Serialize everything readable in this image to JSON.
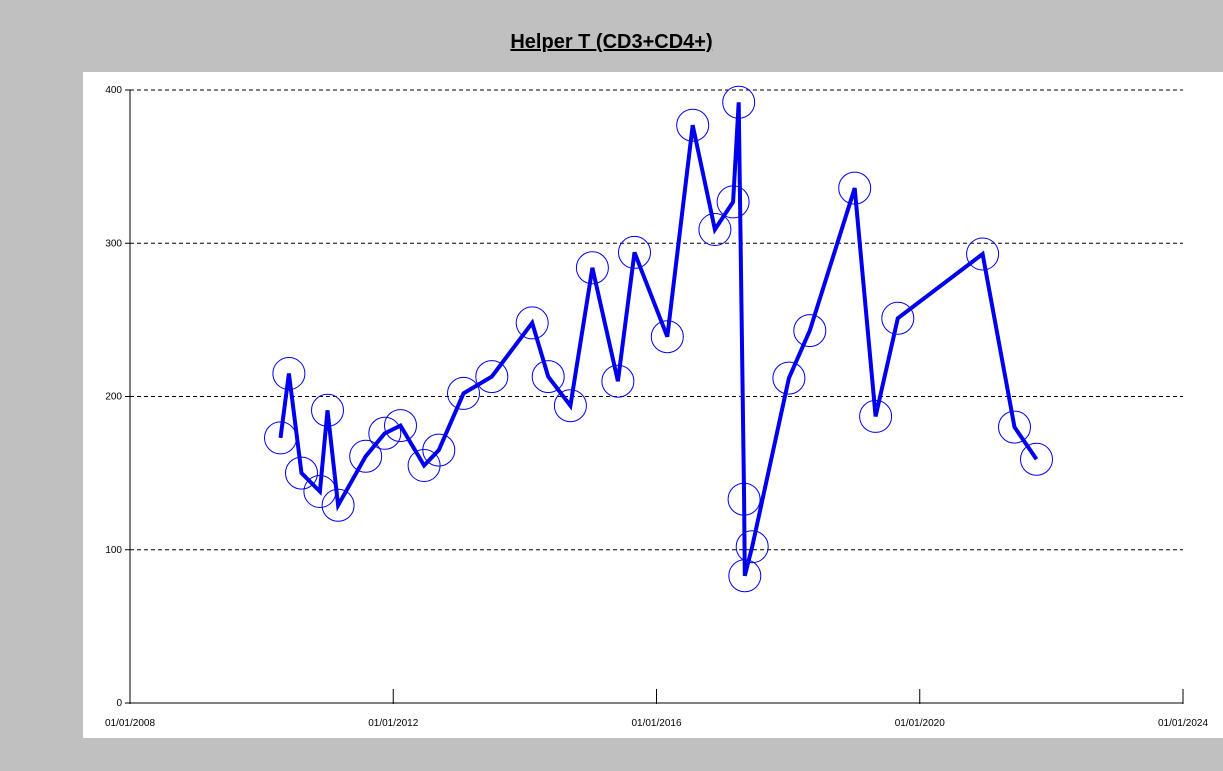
{
  "chart_data": {
    "type": "line",
    "title": "Helper T (CD3+CD4+)",
    "xlabel": "",
    "ylabel": "",
    "x_axis": {
      "type": "date",
      "min": "2008-01-01",
      "max": "2024-01-01",
      "ticks": [
        "2008-01-01",
        "2012-01-01",
        "2016-01-01",
        "2020-01-01",
        "2024-01-01"
      ],
      "tick_labels": [
        "01/01/2008",
        "01/01/2012",
        "01/01/2016",
        "01/01/2020",
        "01/01/2024"
      ]
    },
    "y_axis": {
      "min": 0,
      "max": 400,
      "ticks": [
        0,
        100,
        200,
        300,
        400
      ],
      "tick_labels": [
        "0",
        "100",
        "200",
        "300",
        "400"
      ]
    },
    "ylim": [
      0,
      400
    ],
    "grid": "horizontal dashed",
    "legend": "none",
    "series": [
      {
        "color": "#0000ee",
        "marker": "open-circle",
        "points": [
          {
            "x": "2010-04-15",
            "y": 173
          },
          {
            "x": "2010-06-01",
            "y": 215
          },
          {
            "x": "2010-08-10",
            "y": 150
          },
          {
            "x": "2010-11-20",
            "y": 138
          },
          {
            "x": "2011-01-01",
            "y": 191
          },
          {
            "x": "2011-03-01",
            "y": 129
          },
          {
            "x": "2011-08-01",
            "y": 161
          },
          {
            "x": "2011-11-15",
            "y": 176
          },
          {
            "x": "2012-02-10",
            "y": 181
          },
          {
            "x": "2012-06-20",
            "y": 155
          },
          {
            "x": "2012-09-10",
            "y": 165
          },
          {
            "x": "2013-01-25",
            "y": 202
          },
          {
            "x": "2013-07-01",
            "y": 213
          },
          {
            "x": "2014-02-10",
            "y": 248
          },
          {
            "x": "2014-05-10",
            "y": 213
          },
          {
            "x": "2014-09-10",
            "y": 194
          },
          {
            "x": "2015-01-10",
            "y": 284
          },
          {
            "x": "2015-06-01",
            "y": 210
          },
          {
            "x": "2015-09-01",
            "y": 294
          },
          {
            "x": "2016-03-01",
            "y": 239
          },
          {
            "x": "2016-07-20",
            "y": 377
          },
          {
            "x": "2016-11-20",
            "y": 309
          },
          {
            "x": "2017-03-01",
            "y": 327
          },
          {
            "x": "2017-04-01",
            "y": 392
          },
          {
            "x": "2017-05-01",
            "y": 133
          },
          {
            "x": "2017-05-05",
            "y": 83
          },
          {
            "x": "2017-06-15",
            "y": 102
          },
          {
            "x": "2018-01-05",
            "y": 212
          },
          {
            "x": "2018-05-01",
            "y": 243
          },
          {
            "x": "2019-01-05",
            "y": 336
          },
          {
            "x": "2019-05-01",
            "y": 187
          },
          {
            "x": "2019-09-01",
            "y": 251
          },
          {
            "x": "2020-12-15",
            "y": 293
          },
          {
            "x": "2021-06-10",
            "y": 180
          },
          {
            "x": "2021-10-10",
            "y": 159
          }
        ]
      }
    ]
  }
}
